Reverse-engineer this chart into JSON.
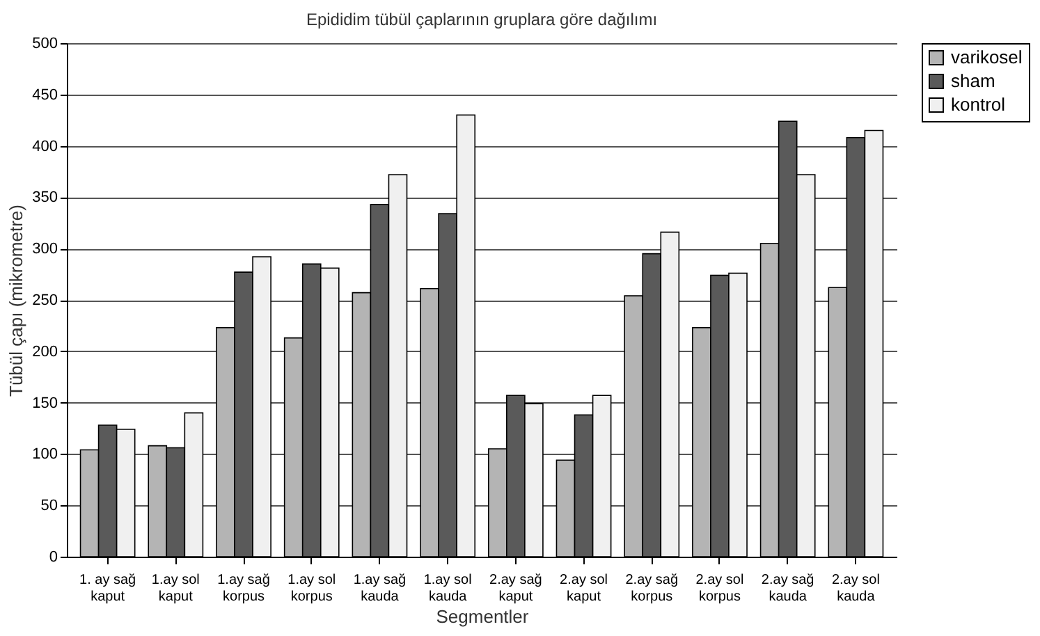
{
  "chart_data": {
    "type": "bar",
    "title": "Epididim tübül çaplarının gruplara göre dağılımı",
    "xlabel": "Segmentler",
    "ylabel": "Tübül çapı (mikrometre)",
    "categories": [
      "1. ay sağ\nkaput",
      "1.ay sol\nkaput",
      "1.ay sağ\nkorpus",
      "1.ay sol\nkorpus",
      "1.ay sağ\nkauda",
      "1.ay sol\nkauda",
      "2.ay sağ\nkaput",
      "2.ay sol\nkaput",
      "2.ay sağ\nkorpus",
      "2.ay sol\nkorpus",
      "2.ay sağ\nkauda",
      "2.ay sol\nkauda"
    ],
    "series": [
      {
        "name": "varikosel",
        "color": "#b4b4b4",
        "values": [
          104,
          108,
          223,
          213,
          257,
          261,
          105,
          94,
          254,
          223,
          305,
          262
        ]
      },
      {
        "name": "sham",
        "color": "#5a5a5a",
        "values": [
          128,
          106,
          277,
          285,
          343,
          334,
          157,
          138,
          295,
          274,
          424,
          408
        ]
      },
      {
        "name": "kontrol",
        "color": "#f0f0f0",
        "values": [
          124,
          140,
          292,
          281,
          372,
          430,
          149,
          157,
          316,
          276,
          372,
          415
        ]
      }
    ],
    "ylim": [
      0,
      500
    ],
    "yticks": [
      0,
      50,
      100,
      150,
      200,
      250,
      300,
      350,
      400,
      450,
      500
    ],
    "grid": "y",
    "legend": "right"
  }
}
